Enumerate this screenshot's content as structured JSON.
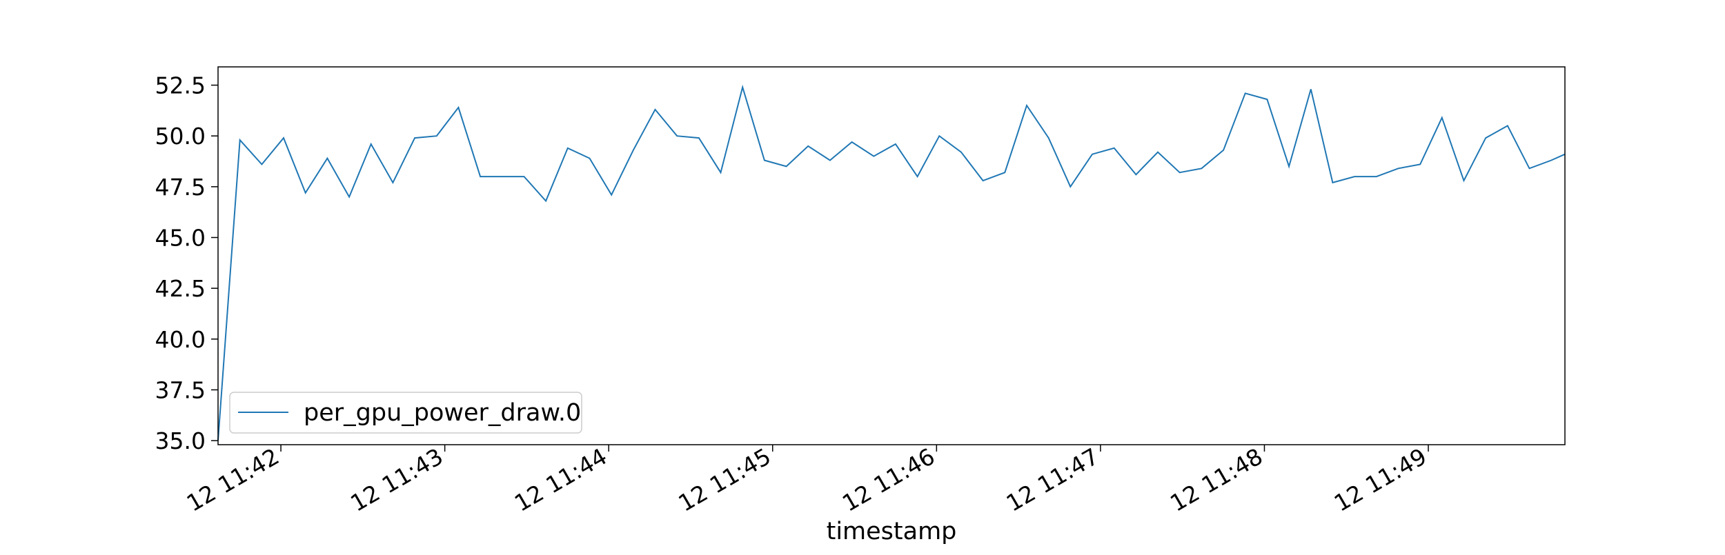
{
  "colors": {
    "series": "#1f77b4",
    "axes": "#000000",
    "background": "#ffffff",
    "legend_border": "#cccccc"
  },
  "chart_data": {
    "type": "line",
    "title": "",
    "xlabel": "timestamp",
    "ylabel": "",
    "grid": false,
    "legend_position": "lower-left",
    "x_tick_labels": [
      "12 11:42",
      "12 11:43",
      "12 11:44",
      "12 11:45",
      "12 11:46",
      "12 11:47",
      "12 11:48",
      "12 11:49"
    ],
    "y_ticks": [
      35.0,
      37.5,
      40.0,
      42.5,
      45.0,
      47.5,
      50.0,
      52.5
    ],
    "y_tick_labels": [
      "35.0",
      "37.5",
      "40.0",
      "42.5",
      "45.0",
      "47.5",
      "50.0",
      "52.5"
    ],
    "xlim": [
      "11:41:37",
      "11:49:50"
    ],
    "ylim": [
      34.8,
      53.4
    ],
    "x": [
      "11:41:37",
      "11:41:45",
      "11:41:53",
      "11:42:01",
      "11:42:09",
      "11:42:17",
      "11:42:25",
      "11:42:33",
      "11:42:41",
      "11:42:49",
      "11:42:57",
      "11:43:05",
      "11:43:13",
      "11:43:21",
      "11:43:29",
      "11:43:37",
      "11:43:45",
      "11:43:53",
      "11:44:01",
      "11:44:09",
      "11:44:17",
      "11:44:25",
      "11:44:33",
      "11:44:41",
      "11:44:49",
      "11:44:57",
      "11:45:05",
      "11:45:13",
      "11:45:21",
      "11:45:29",
      "11:45:37",
      "11:45:45",
      "11:45:53",
      "11:46:01",
      "11:46:09",
      "11:46:17",
      "11:46:25",
      "11:46:33",
      "11:46:41",
      "11:46:49",
      "11:46:57",
      "11:47:05",
      "11:47:13",
      "11:47:21",
      "11:47:29",
      "11:47:37",
      "11:47:45",
      "11:47:53",
      "11:48:01",
      "11:48:09",
      "11:48:17",
      "11:48:25",
      "11:48:33",
      "11:48:41",
      "11:48:49",
      "11:48:57",
      "11:49:05",
      "11:49:13",
      "11:49:21",
      "11:49:29",
      "11:49:37",
      "11:49:45",
      "11:49:50"
    ],
    "series": [
      {
        "name": "per_gpu_power_draw.0",
        "values": [
          35.0,
          49.8,
          48.6,
          49.9,
          47.2,
          48.9,
          47.0,
          49.6,
          47.7,
          49.9,
          50.0,
          51.4,
          48.0,
          48.0,
          48.0,
          46.8,
          49.4,
          48.9,
          47.1,
          49.3,
          51.3,
          50.0,
          49.9,
          48.2,
          52.4,
          48.8,
          48.5,
          49.5,
          48.8,
          49.7,
          49.0,
          49.6,
          48.0,
          50.0,
          49.2,
          47.8,
          48.2,
          51.5,
          49.9,
          47.5,
          49.1,
          49.4,
          48.1,
          49.2,
          48.2,
          48.4,
          49.3,
          52.1,
          51.8,
          48.5,
          52.3,
          47.7,
          48.0,
          48.0,
          48.4,
          48.6,
          50.9,
          47.8,
          49.9,
          50.5,
          48.4,
          48.8,
          49.1
        ]
      }
    ]
  }
}
